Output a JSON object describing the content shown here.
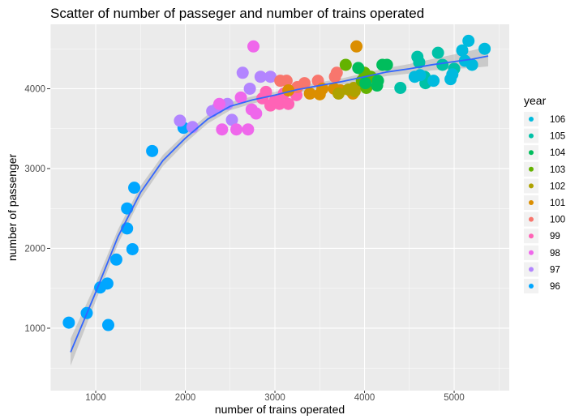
{
  "chart_data": {
    "type": "scatter",
    "title": "Scatter of number of passeger and number of trains operated",
    "xlabel": "number of trains operated",
    "ylabel": "number of passenger",
    "xlim": [
      493,
      5615
    ],
    "ylim": [
      218,
      4807
    ],
    "xticks": [
      1000,
      2000,
      3000,
      4000,
      5000
    ],
    "yticks": [
      1000,
      2000,
      3000,
      4000
    ],
    "grid": true,
    "legend": {
      "title": "year",
      "position": "right",
      "entries": [
        "106",
        "105",
        "104",
        "103",
        "102",
        "101",
        "100",
        "99",
        "98",
        "97",
        "96"
      ]
    },
    "colors": {
      "96": "#00A6FF",
      "97": "#B385FF",
      "98": "#EF67EB",
      "99": "#FF63B6",
      "100": "#F8766D",
      "101": "#DB8E00",
      "102": "#AEA200",
      "103": "#64B200",
      "104": "#00BD5C",
      "105": "#00C1A7",
      "106": "#00BADE"
    },
    "series": [
      {
        "name": "96",
        "points": [
          [
            700,
            1070
          ],
          [
            900,
            1190
          ],
          [
            1050,
            1510
          ],
          [
            1130,
            1560
          ],
          [
            1140,
            1040
          ],
          [
            1230,
            1860
          ],
          [
            1350,
            2250
          ],
          [
            1350,
            2500
          ],
          [
            1410,
            1990
          ],
          [
            1430,
            2760
          ],
          [
            1630,
            3220
          ],
          [
            1980,
            3510
          ]
        ]
      },
      {
        "name": "97",
        "points": [
          [
            1940,
            3600
          ],
          [
            2080,
            3520
          ],
          [
            2300,
            3720
          ],
          [
            2470,
            3810
          ],
          [
            2640,
            4200
          ],
          [
            2720,
            4000
          ],
          [
            2840,
            4150
          ],
          [
            2950,
            4150
          ],
          [
            2360,
            3760
          ],
          [
            2520,
            3610
          ]
        ]
      },
      {
        "name": "98",
        "points": [
          [
            2760,
            4530
          ],
          [
            2410,
            3490
          ],
          [
            2570,
            3490
          ],
          [
            2700,
            3490
          ],
          [
            2380,
            3810
          ],
          [
            2620,
            3890
          ],
          [
            2740,
            3740
          ],
          [
            2790,
            3690
          ]
        ]
      },
      {
        "name": "99",
        "points": [
          [
            2860,
            3880
          ],
          [
            2950,
            3790
          ],
          [
            3050,
            3810
          ],
          [
            3150,
            3810
          ],
          [
            3000,
            3850
          ],
          [
            3240,
            3920
          ],
          [
            3100,
            3940
          ],
          [
            2900,
            3960
          ]
        ]
      },
      {
        "name": "100",
        "points": [
          [
            3130,
            4100
          ],
          [
            3060,
            4100
          ],
          [
            3330,
            4070
          ],
          [
            3480,
            4100
          ],
          [
            3670,
            4150
          ],
          [
            3690,
            4200
          ],
          [
            3250,
            4020
          ]
        ]
      },
      {
        "name": "101",
        "points": [
          [
            3910,
            4530
          ],
          [
            3150,
            3980
          ],
          [
            3390,
            3940
          ],
          [
            3530,
            4000
          ],
          [
            3730,
            3980
          ],
          [
            3870,
            3940
          ],
          [
            3660,
            4000
          ],
          [
            3500,
            3930
          ]
        ]
      },
      {
        "name": "102",
        "points": [
          [
            3880,
            4010
          ],
          [
            3890,
            3970
          ],
          [
            3820,
            3990
          ],
          [
            4000,
            4050
          ],
          [
            3710,
            3940
          ]
        ]
      },
      {
        "name": "103",
        "points": [
          [
            3790,
            4300
          ],
          [
            3970,
            4100
          ],
          [
            4070,
            4150
          ],
          [
            4020,
            4010
          ],
          [
            4000,
            4200
          ]
        ]
      },
      {
        "name": "104",
        "points": [
          [
            3930,
            4260
          ],
          [
            4010,
            4070
          ],
          [
            4150,
            4100
          ],
          [
            4200,
            4300
          ],
          [
            4140,
            4040
          ],
          [
            4250,
            4300
          ]
        ]
      },
      {
        "name": "105",
        "points": [
          [
            4400,
            4010
          ],
          [
            4590,
            4400
          ],
          [
            4820,
            4450
          ],
          [
            4670,
            4150
          ],
          [
            4870,
            4300
          ],
          [
            4680,
            4070
          ],
          [
            5000,
            4250
          ],
          [
            4610,
            4330
          ]
        ]
      },
      {
        "name": "106",
        "points": [
          [
            4560,
            4150
          ],
          [
            4770,
            4100
          ],
          [
            4980,
            4180
          ],
          [
            5090,
            4480
          ],
          [
            5160,
            4600
          ],
          [
            5340,
            4500
          ],
          [
            5120,
            4350
          ],
          [
            4960,
            4120
          ],
          [
            4620,
            4170
          ],
          [
            5200,
            4300
          ]
        ]
      }
    ],
    "smooth": {
      "method": "loess",
      "x": [
        720,
        1000,
        1250,
        1500,
        1750,
        2000,
        2250,
        2500,
        2750,
        3000,
        3250,
        3500,
        3750,
        4000,
        4250,
        4500,
        4750,
        5000,
        5200,
        5380
      ],
      "y": [
        700,
        1450,
        2150,
        2700,
        3100,
        3380,
        3620,
        3780,
        3860,
        3920,
        3990,
        4040,
        4090,
        4150,
        4210,
        4250,
        4300,
        4340,
        4370,
        4410
      ],
      "se": [
        170,
        110,
        90,
        80,
        70,
        60,
        55,
        50,
        45,
        40,
        40,
        40,
        40,
        45,
        50,
        60,
        70,
        90,
        110,
        130
      ]
    }
  }
}
